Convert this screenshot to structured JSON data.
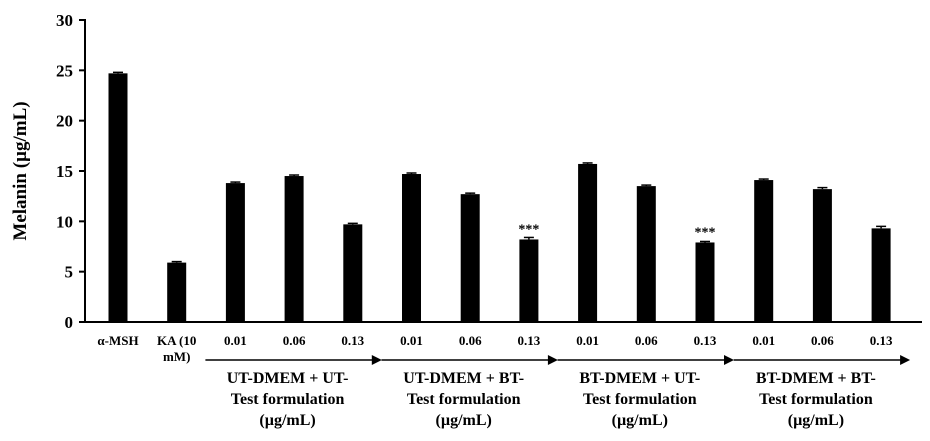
{
  "chart_data": {
    "type": "bar",
    "title": "",
    "xlabel": "",
    "ylabel": "Melanin (µg/mL)",
    "ylim": [
      0,
      30
    ],
    "yticks": [
      0,
      5,
      10,
      15,
      20,
      25,
      30
    ],
    "grid": false,
    "categories": [
      [
        "α-MSH"
      ],
      [
        "KA (10",
        "mM)"
      ],
      [
        "0.01"
      ],
      [
        "0.06"
      ],
      [
        "0.13"
      ],
      [
        "0.01"
      ],
      [
        "0.06"
      ],
      [
        "0.13"
      ],
      [
        "0.01"
      ],
      [
        "0.06"
      ],
      [
        "0.13"
      ],
      [
        "0.01"
      ],
      [
        "0.06"
      ],
      [
        "0.13"
      ]
    ],
    "values": [
      24.7,
      5.9,
      13.8,
      14.5,
      9.7,
      14.7,
      12.7,
      8.2,
      15.7,
      13.5,
      7.9,
      14.1,
      13.2,
      9.3
    ],
    "errors": [
      0.1,
      0.1,
      0.1,
      0.1,
      0.1,
      0.1,
      0.1,
      0.2,
      0.1,
      0.1,
      0.1,
      0.1,
      0.15,
      0.2
    ],
    "annotations": [
      "",
      "",
      "",
      "",
      "",
      "",
      "",
      "***",
      "",
      "",
      "***",
      "",
      "",
      ""
    ],
    "bar_color": "#000000",
    "groups": [
      {
        "label": [
          "UT-DMEM + UT-",
          "Test formulation",
          "(µg/mL)"
        ],
        "start": 2,
        "end": 4
      },
      {
        "label": [
          "UT-DMEM + BT-",
          "Test formulation",
          "(µg/mL)"
        ],
        "start": 5,
        "end": 7
      },
      {
        "label": [
          "BT-DMEM + UT-",
          "Test formulation",
          "(µg/mL)"
        ],
        "start": 8,
        "end": 10
      },
      {
        "label": [
          "BT-DMEM + BT-",
          "Test formulation",
          "(µg/mL)"
        ],
        "start": 11,
        "end": 13
      }
    ]
  }
}
